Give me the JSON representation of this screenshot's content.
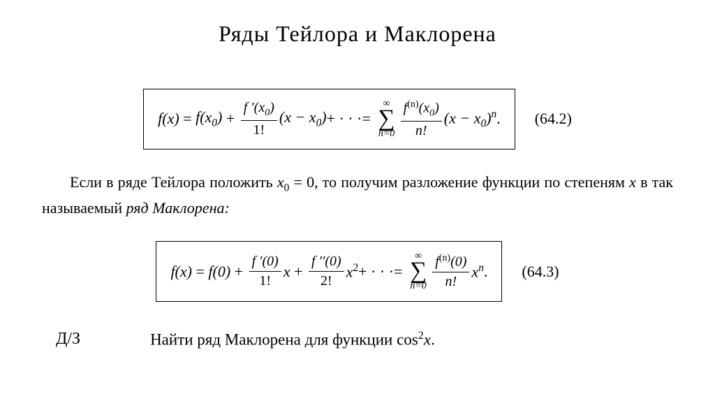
{
  "title": "Ряды Тейлора и  Маклорена",
  "eq1": {
    "label": "(64.2)",
    "lhs": "f(x)",
    "term1": "f(x",
    "sub0": "0",
    "frac1_num_prefix": "f ′(x",
    "frac1_den": "1!",
    "diff": "(x − x",
    "dots": " + · · · ",
    "sum_upper": "∞",
    "sum_lower": "n=0",
    "fracn_num_prefix": "f",
    "fracn_num_sup": "(n)",
    "fracn_num_suffix": "(x",
    "fracn_den": "n!",
    "power_n": "n",
    "period": "."
  },
  "paragraph": {
    "p1": "Если в ряде Тейлора положить ",
    "p2": "x",
    "p3": "0",
    "p4": " = 0, то получим разложение функции по степеням ",
    "p5": "x",
    "p6": " в так называемый ",
    "p7": "ряд Маклорена:"
  },
  "eq2": {
    "label": "(64.3)",
    "lhs": "f(x)",
    "term1": "f(0)",
    "frac1_num": "f ′(0)",
    "frac1_den": "1!",
    "x1": "x",
    "frac2_num": "f ′′(0)",
    "frac2_den": "2!",
    "x2": "x",
    "sup2": "2",
    "dots": " + · · · ",
    "sum_upper": "∞",
    "sum_lower": "n=0",
    "fracn_num_prefix": "f",
    "fracn_num_sup": "(n)",
    "fracn_num_suffix": "(0)",
    "fracn_den": "n!",
    "xn": "x",
    "power_n": "n",
    "period": "."
  },
  "hw": {
    "label": "Д/З",
    "task_prefix": "Найти ряд Маклорена для функции ",
    "task_fn": "cos",
    "task_sup": "2",
    "task_var": "x",
    "task_period": "."
  }
}
